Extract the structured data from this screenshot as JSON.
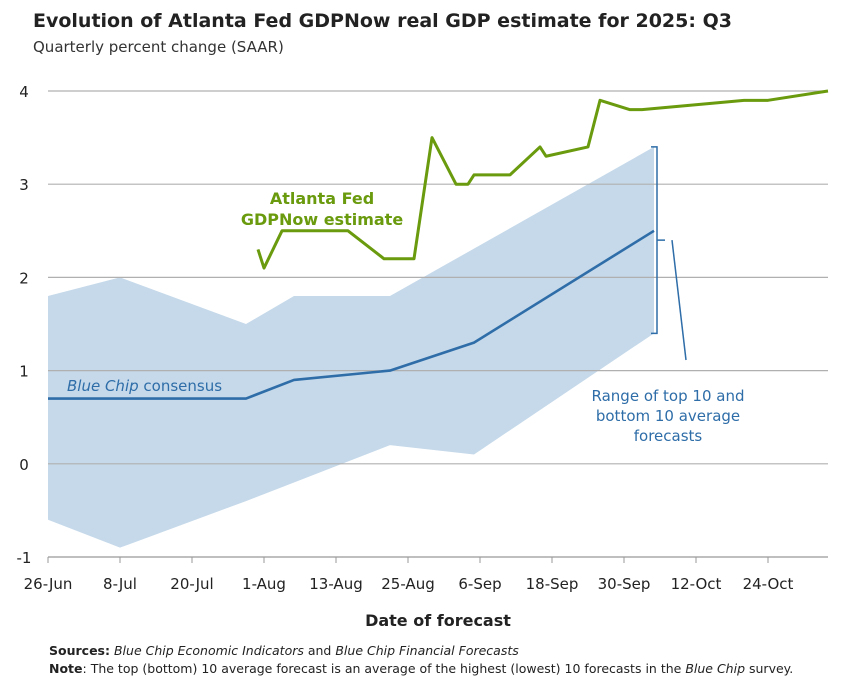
{
  "chart_data": {
    "type": "line",
    "title": "Evolution of Atlanta Fed GDPNow real GDP estimate for 2025: Q3",
    "subtitle": "Quarterly percent change (SAAR)",
    "xlabel": "Date of forecast",
    "ylabel": "",
    "ylim": [
      -1,
      4
    ],
    "xlim": [
      "2025-06-26",
      "2025-11-03"
    ],
    "yticks": [
      -1,
      0,
      1,
      2,
      3,
      4
    ],
    "xticks": [
      {
        "date": "2025-06-26",
        "label": "26-Jun"
      },
      {
        "date": "2025-07-08",
        "label": "8-Jul"
      },
      {
        "date": "2025-07-20",
        "label": "20-Jul"
      },
      {
        "date": "2025-08-01",
        "label": "1-Aug"
      },
      {
        "date": "2025-08-13",
        "label": "13-Aug"
      },
      {
        "date": "2025-08-25",
        "label": "25-Aug"
      },
      {
        "date": "2025-09-06",
        "label": "6-Sep"
      },
      {
        "date": "2025-09-18",
        "label": "18-Sep"
      },
      {
        "date": "2025-09-30",
        "label": "30-Sep"
      },
      {
        "date": "2025-10-12",
        "label": "12-Oct"
      },
      {
        "date": "2025-10-24",
        "label": "24-Oct"
      }
    ],
    "grid": "horizontal",
    "colors": {
      "gdpnow": "#6a9a0d",
      "consensus": "#2e6da8",
      "range": "#c5d9ea",
      "grid": "#b0b0b0"
    },
    "series": [
      {
        "name": "Atlanta Fed GDPNow estimate",
        "label_lines": [
          "Atlanta Fed",
          "GDPNow estimate"
        ],
        "points": [
          [
            "2025-07-31",
            2.3
          ],
          [
            "2025-08-01",
            2.1
          ],
          [
            "2025-08-04",
            2.5
          ],
          [
            "2025-08-15",
            2.5
          ],
          [
            "2025-08-21",
            2.2
          ],
          [
            "2025-08-26",
            2.2
          ],
          [
            "2025-08-29",
            3.5
          ],
          [
            "2025-09-02",
            3.0
          ],
          [
            "2025-09-04",
            3.0
          ],
          [
            "2025-09-05",
            3.1
          ],
          [
            "2025-09-11",
            3.1
          ],
          [
            "2025-09-16",
            3.4
          ],
          [
            "2025-09-17",
            3.3
          ],
          [
            "2025-09-24",
            3.4
          ],
          [
            "2025-09-26",
            3.9
          ],
          [
            "2025-10-01",
            3.8
          ],
          [
            "2025-10-03",
            3.8
          ],
          [
            "2025-10-20",
            3.9
          ],
          [
            "2025-10-24",
            3.9
          ],
          [
            "2025-11-03",
            4.0
          ]
        ]
      },
      {
        "name": "Blue Chip consensus",
        "label_italic": "Blue Chip",
        "label_rest": " consensus",
        "points": [
          [
            "2025-06-26",
            0.7
          ],
          [
            "2025-07-29",
            0.7
          ],
          [
            "2025-08-06",
            0.9
          ],
          [
            "2025-08-22",
            1.0
          ],
          [
            "2025-09-05",
            1.3
          ],
          [
            "2025-10-05",
            2.5
          ]
        ]
      }
    ],
    "range_band": {
      "label_lines": [
        "Range of top 10 and",
        "bottom 10 average",
        "forecasts"
      ],
      "upper": [
        [
          "2025-06-26",
          1.8
        ],
        [
          "2025-07-08",
          2.0
        ],
        [
          "2025-07-29",
          1.5
        ],
        [
          "2025-08-06",
          1.8
        ],
        [
          "2025-08-22",
          1.8
        ],
        [
          "2025-10-05",
          3.4
        ]
      ],
      "lower": [
        [
          "2025-06-26",
          -0.6
        ],
        [
          "2025-07-08",
          -0.9
        ],
        [
          "2025-07-29",
          -0.4
        ],
        [
          "2025-08-06",
          -0.2
        ],
        [
          "2025-08-22",
          0.2
        ],
        [
          "2025-09-05",
          0.1
        ],
        [
          "2025-10-05",
          1.4
        ]
      ]
    }
  },
  "footer": {
    "sources_label": "Sources:",
    "sources_italic1": "Blue Chip Economic Indicators",
    "sources_and": " and ",
    "sources_italic2": "Blue Chip Financial Forecasts",
    "note_label": "Note",
    "note_text": ": The top (bottom) 10 average forecast is an average of the highest (lowest) 10 forecasts in the ",
    "note_italic": "Blue Chip",
    "note_end": " survey."
  }
}
